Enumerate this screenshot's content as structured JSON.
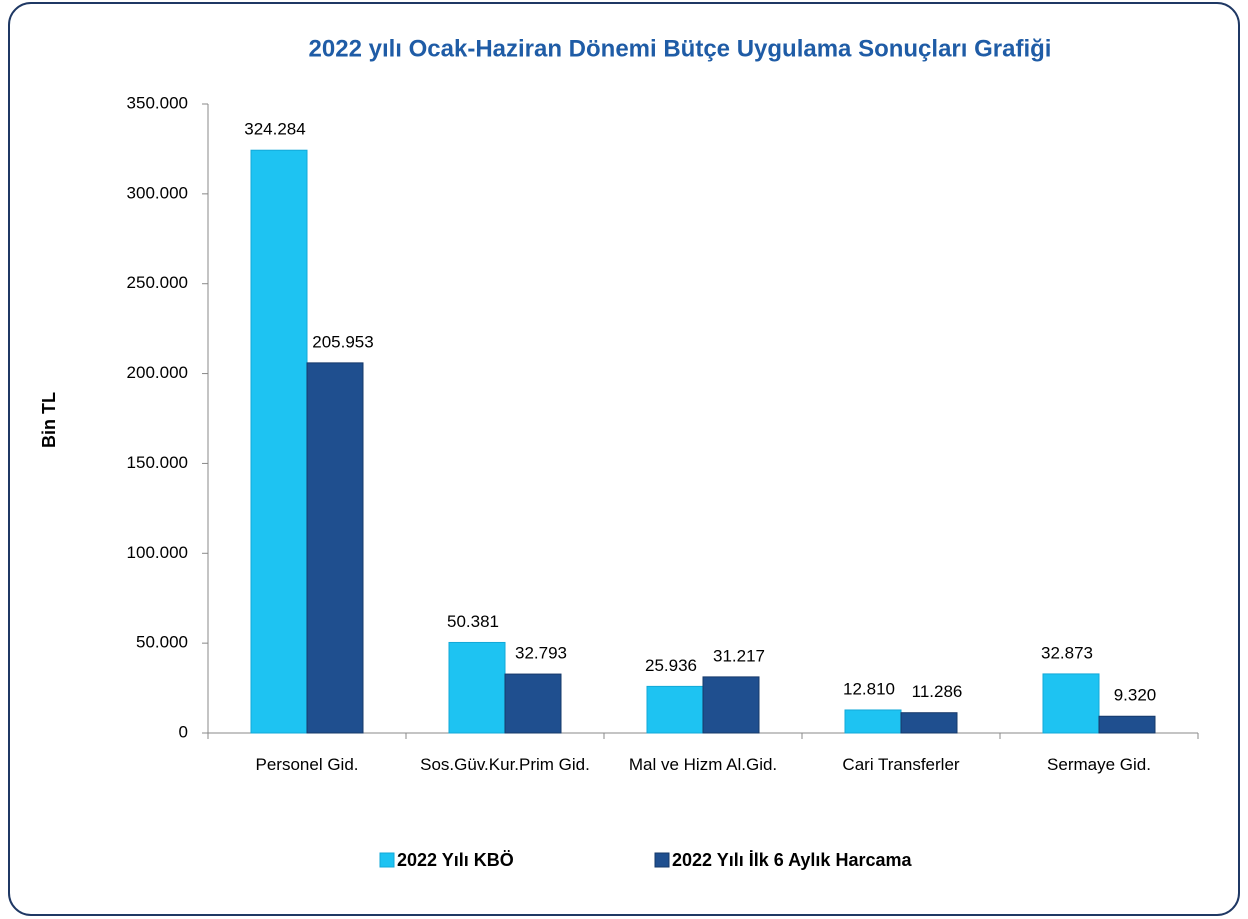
{
  "chart_data": {
    "type": "bar",
    "title": "2022 yılı Ocak-Haziran Dönemi Bütçe Uygulama Sonuçları Grafiği",
    "ylabel": "Bin TL",
    "categories": [
      "Personel Gid.",
      "Sos.Güv.Kur.Prim Gid.",
      "Mal ve Hizm Al.Gid.",
      "Cari Transferler",
      "Sermaye Gid."
    ],
    "series": [
      {
        "name": "2022 Yılı KBÖ",
        "color": "#1ec3f2",
        "values": [
          324284,
          50381,
          25936,
          12810,
          32873
        ],
        "value_labels": [
          "324.284",
          "50.381",
          "25.936",
          "12.810",
          "32.873"
        ]
      },
      {
        "name": "2022 Yılı İlk 6 Aylık Harcama",
        "color": "#1f4f8f",
        "values": [
          205953,
          32793,
          31217,
          11286,
          9320
        ],
        "value_labels": [
          "205.953",
          "32.793",
          "31.217",
          "11.286",
          "9.320"
        ]
      }
    ],
    "ylim": [
      0,
      350000
    ],
    "yticks": [
      0,
      {
        "value": 50000,
        "label": "50.000"
      },
      {
        "value": 100000,
        "label": "100.000"
      },
      {
        "value": 150000,
        "label": "150.000"
      },
      {
        "value": 200000,
        "label": "200.000"
      },
      {
        "value": 250000,
        "label": "250.000"
      },
      {
        "value": 300000,
        "label": "300.000"
      },
      {
        "value": 350000,
        "label": "350.000"
      }
    ],
    "legend": "bottom"
  }
}
